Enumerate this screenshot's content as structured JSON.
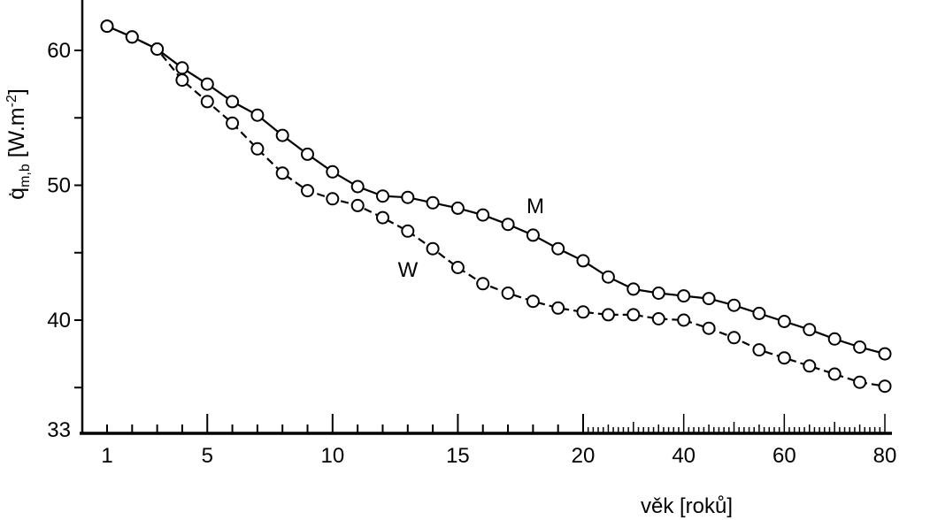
{
  "chart_data": {
    "type": "line",
    "xlabel": "věk [roků]",
    "ylabel": {
      "symbol": "q̇",
      "sub": "m,b",
      "unit": " [W.m",
      "sup": "-2",
      "end": "]"
    },
    "xlim": [
      1,
      80
    ],
    "ylim": [
      33,
      64
    ],
    "x_scale_break": 20,
    "x_ticks": [
      1,
      5,
      10,
      15,
      20,
      40,
      60,
      80
    ],
    "y_ticks": [
      33,
      40,
      50,
      60
    ],
    "y_minor_ticks": [
      35,
      45,
      55
    ],
    "grid": false,
    "colors": {
      "line": "#000000",
      "marker_fill": "#ffffff",
      "background": "#ffffff"
    },
    "x": [
      1,
      2,
      3,
      4,
      5,
      6,
      7,
      8,
      9,
      10,
      11,
      12,
      13,
      14,
      15,
      16,
      17,
      18,
      19,
      20,
      25,
      30,
      35,
      40,
      45,
      50,
      55,
      60,
      65,
      70,
      75,
      80
    ],
    "series": [
      {
        "name": "M",
        "line_style": "solid",
        "values": [
          61.8,
          61.0,
          60.1,
          58.7,
          57.5,
          56.2,
          55.2,
          53.7,
          52.3,
          51.0,
          49.9,
          49.2,
          49.1,
          48.7,
          48.3,
          47.8,
          47.1,
          46.3,
          45.3,
          44.4,
          43.2,
          42.3,
          42.0,
          41.8,
          41.6,
          41.1,
          40.5,
          39.9,
          39.3,
          38.6,
          38.0,
          37.5
        ]
      },
      {
        "name": "W",
        "line_style": "dashed",
        "values": [
          61.8,
          61.0,
          60.1,
          57.8,
          56.2,
          54.6,
          52.7,
          50.9,
          49.6,
          49.0,
          48.5,
          47.6,
          46.6,
          45.3,
          43.9,
          42.7,
          42.0,
          41.4,
          40.9,
          40.6,
          40.4,
          40.4,
          40.1,
          40.0,
          39.4,
          38.7,
          37.8,
          37.2,
          36.6,
          36.0,
          35.4,
          35.1
        ]
      }
    ]
  }
}
